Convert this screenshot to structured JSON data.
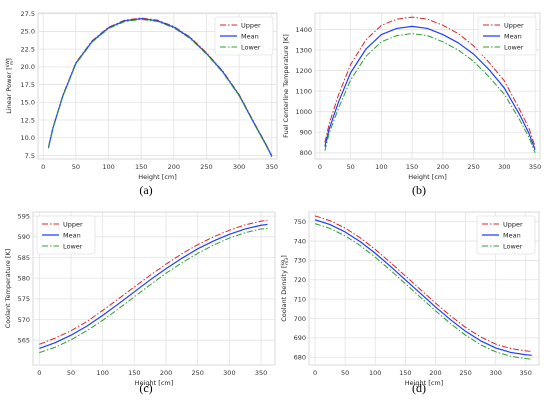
{
  "chart_data": [
    {
      "panel": "(a)",
      "type": "line",
      "xlabel": "Height [cm]",
      "ylabel": "Linear Power [kW/m]",
      "ylabel_main": "Linear Power ",
      "ylabel_num": "kW",
      "ylabel_den": "m",
      "xlim": [
        -8,
        358
      ],
      "ylim": [
        7.0,
        27.6
      ],
      "xticks": [
        0,
        50,
        100,
        150,
        200,
        250,
        300,
        350
      ],
      "yticks": [
        7.5,
        10.0,
        12.5,
        15.0,
        17.5,
        20.0,
        22.5,
        25.0,
        27.5
      ],
      "ytick_labels": [
        "7.5",
        "10.0",
        "12.5",
        "15.0",
        "17.5",
        "20.0",
        "22.5",
        "25.0",
        "27.5"
      ],
      "legend_position": "top-right",
      "x": [
        8,
        15,
        30,
        50,
        75,
        100,
        125,
        150,
        175,
        200,
        225,
        250,
        275,
        300,
        325,
        340,
        350
      ],
      "series": [
        {
          "name": "Upper",
          "color": "#d62728",
          "dash": "6,2,1.5,2",
          "values": [
            8.7,
            11.5,
            16.0,
            20.6,
            23.7,
            25.6,
            26.6,
            26.9,
            26.6,
            25.7,
            24.2,
            22.0,
            19.4,
            16.1,
            11.8,
            9.3,
            7.5
          ]
        },
        {
          "name": "Mean",
          "color": "#1f3fff",
          "dash": "",
          "values": [
            8.6,
            11.4,
            15.9,
            20.5,
            23.6,
            25.5,
            26.5,
            26.8,
            26.5,
            25.6,
            24.1,
            21.9,
            19.3,
            16.0,
            11.7,
            9.2,
            7.4
          ]
        },
        {
          "name": "Lower",
          "color": "#2ca02c",
          "dash": "6,2,1.5,2",
          "values": [
            8.5,
            11.3,
            15.8,
            20.4,
            23.5,
            25.4,
            26.4,
            26.7,
            26.4,
            25.5,
            24.0,
            21.8,
            19.2,
            15.9,
            11.6,
            9.1,
            7.3
          ]
        }
      ]
    },
    {
      "panel": "(b)",
      "type": "line",
      "xlabel": "Height [cm]",
      "ylabel": "Fuel Centerline Temperature [K]",
      "xlim": [
        -8,
        358
      ],
      "ylim": [
        770,
        1480
      ],
      "xticks": [
        0,
        50,
        100,
        150,
        200,
        250,
        300,
        350
      ],
      "yticks": [
        800,
        900,
        1000,
        1100,
        1200,
        1300,
        1400
      ],
      "ytick_labels": [
        "800",
        "900",
        "1000",
        "1100",
        "1200",
        "1300",
        "1400"
      ],
      "legend_position": "top-right",
      "x": [
        8,
        15,
        30,
        50,
        75,
        100,
        125,
        150,
        175,
        200,
        225,
        250,
        275,
        300,
        325,
        340,
        350
      ],
      "series": [
        {
          "name": "Upper",
          "color": "#d62728",
          "dash": "6,2,1.5,2",
          "values": [
            850,
            940,
            1080,
            1230,
            1350,
            1420,
            1450,
            1460,
            1450,
            1420,
            1380,
            1320,
            1240,
            1150,
            1010,
            920,
            830
          ]
        },
        {
          "name": "Mean",
          "color": "#1f3fff",
          "dash": "",
          "values": [
            830,
            915,
            1045,
            1190,
            1305,
            1375,
            1405,
            1415,
            1405,
            1375,
            1335,
            1280,
            1205,
            1115,
            985,
            895,
            815
          ]
        },
        {
          "name": "Lower",
          "color": "#2ca02c",
          "dash": "6,2,1.5,2",
          "values": [
            810,
            895,
            1015,
            1155,
            1270,
            1340,
            1370,
            1380,
            1370,
            1340,
            1300,
            1245,
            1170,
            1085,
            960,
            875,
            800
          ]
        }
      ]
    },
    {
      "panel": "(c)",
      "type": "line",
      "xlabel": "Height [cm]",
      "ylabel": "Coolant Temperature [K]",
      "xlim": [
        -10,
        372
      ],
      "ylim": [
        559,
        596
      ],
      "xticks": [
        0,
        50,
        100,
        150,
        200,
        250,
        300,
        350
      ],
      "yticks": [
        565,
        570,
        575,
        580,
        585,
        590,
        595
      ],
      "ytick_labels": [
        "565",
        "570",
        "575",
        "580",
        "585",
        "590",
        "595"
      ],
      "legend_position": "top-left",
      "x": [
        0,
        25,
        50,
        75,
        100,
        125,
        150,
        175,
        200,
        225,
        250,
        275,
        300,
        325,
        350,
        360
      ],
      "series": [
        {
          "name": "Upper",
          "color": "#d62728",
          "dash": "6,2,1.5,2",
          "values": [
            564.0,
            565.5,
            567.3,
            569.5,
            572.2,
            575.0,
            577.9,
            580.7,
            583.4,
            585.9,
            588.1,
            590.0,
            591.6,
            592.9,
            593.8,
            594.0
          ]
        },
        {
          "name": "Mean",
          "color": "#1f3fff",
          "dash": "",
          "values": [
            563.0,
            564.4,
            566.2,
            568.4,
            571.0,
            573.8,
            576.7,
            579.6,
            582.3,
            584.8,
            587.1,
            589.0,
            590.6,
            591.9,
            592.8,
            593.0
          ]
        },
        {
          "name": "Lower",
          "color": "#2ca02c",
          "dash": "6,2,1.5,2",
          "values": [
            562.0,
            563.3,
            565.1,
            567.3,
            569.8,
            572.6,
            575.5,
            578.4,
            581.2,
            583.7,
            586.0,
            588.0,
            589.7,
            591.0,
            591.9,
            592.0
          ]
        }
      ]
    },
    {
      "panel": "(d)",
      "type": "line",
      "xlabel": "Height [cm]",
      "ylabel": "Coolant Density [kg/m3]",
      "ylabel_main": "Coolant Density ",
      "ylabel_num": "kg",
      "ylabel_den": "m3",
      "xlim": [
        -10,
        372
      ],
      "ylim": [
        676,
        755
      ],
      "xticks": [
        0,
        50,
        100,
        150,
        200,
        250,
        300,
        350
      ],
      "yticks": [
        680,
        690,
        700,
        710,
        720,
        730,
        740,
        750
      ],
      "ytick_labels": [
        "680",
        "690",
        "700",
        "710",
        "720",
        "730",
        "740",
        "750"
      ],
      "legend_position": "top-right",
      "x": [
        0,
        25,
        50,
        75,
        100,
        125,
        150,
        175,
        200,
        225,
        250,
        275,
        300,
        325,
        350,
        360
      ],
      "series": [
        {
          "name": "Upper",
          "color": "#d62728",
          "dash": "6,2,1.5,2",
          "values": [
            753.0,
            750.5,
            746.7,
            741.7,
            735.7,
            729.0,
            722.0,
            715.0,
            708.0,
            701.4,
            695.4,
            690.5,
            686.8,
            684.5,
            683.3,
            683.0
          ]
        },
        {
          "name": "Mean",
          "color": "#1f3fff",
          "dash": "",
          "values": [
            751.0,
            748.5,
            744.7,
            739.7,
            733.7,
            727.0,
            720.0,
            713.0,
            706.0,
            699.4,
            693.4,
            688.5,
            684.8,
            682.5,
            681.3,
            681.0
          ]
        },
        {
          "name": "Lower",
          "color": "#2ca02c",
          "dash": "6,2,1.5,2",
          "values": [
            749.0,
            746.5,
            742.7,
            737.7,
            731.7,
            725.0,
            718.0,
            711.0,
            704.0,
            697.4,
            691.4,
            686.5,
            682.8,
            680.5,
            679.3,
            679.0
          ]
        }
      ]
    }
  ]
}
